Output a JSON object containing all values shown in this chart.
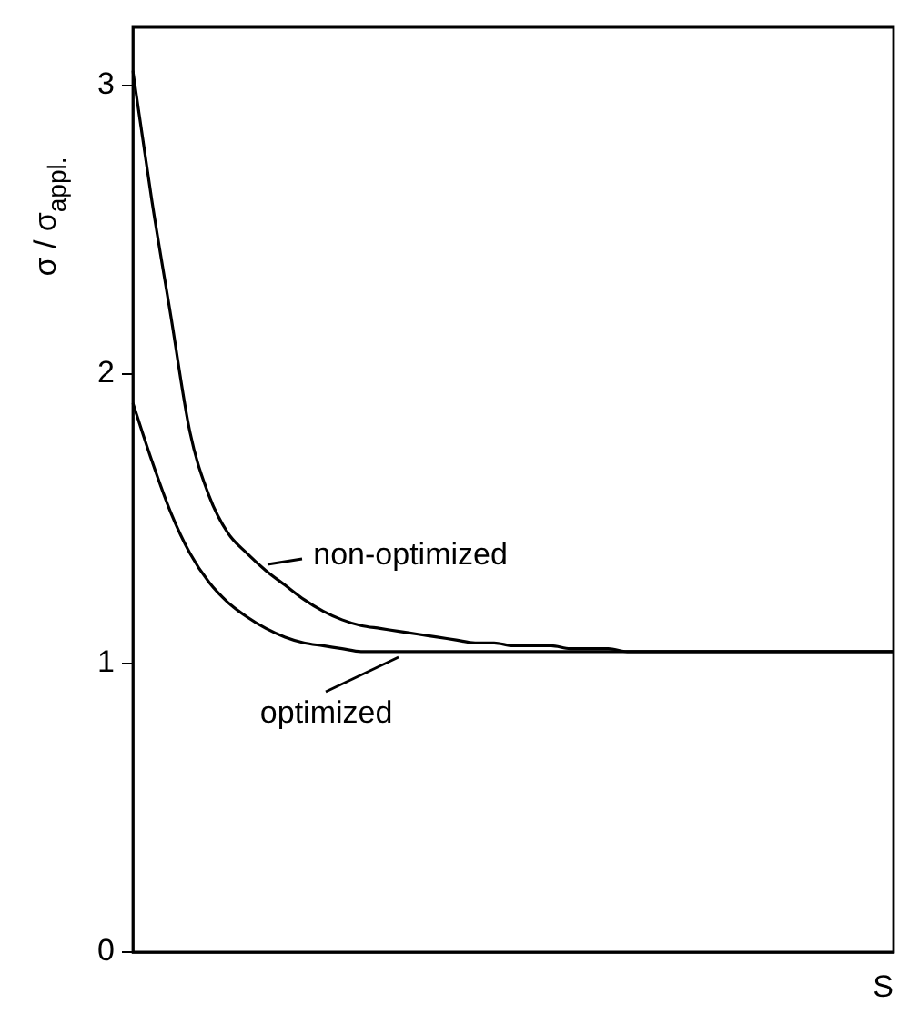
{
  "chart_data": {
    "type": "line",
    "xlabel": "S",
    "ylabel": "σ / σ$_{appl.}$",
    "categories": [
      null,
      null,
      null,
      null,
      null,
      null,
      null,
      null,
      null,
      null,
      null,
      null,
      null,
      null,
      null,
      null,
      null,
      null,
      null,
      null,
      null,
      null,
      null,
      null,
      null,
      null,
      null,
      null,
      null,
      null,
      null,
      null,
      null,
      null,
      null,
      null,
      null,
      null,
      null,
      null,
      null
    ],
    "series": [
      {
        "color": "#000000",
        "values": [
          3.05,
          2.6,
          2.2,
          1.8,
          1.58,
          1.45,
          1.38,
          1.32,
          1.27,
          1.22,
          1.18,
          1.15,
          1.13,
          1.12,
          1.11,
          1.1,
          1.09,
          1.08,
          1.07,
          1.07,
          1.06,
          1.06,
          1.06,
          1.05,
          1.05,
          1.05,
          1.04,
          1.04,
          1.04,
          1.04,
          1.04,
          1.04,
          1.04,
          1.04,
          1.04,
          1.04,
          1.04,
          1.04,
          1.04,
          1.04,
          1.04
        ]
      },
      {
        "color": "#000000",
        "values": [
          1.9,
          1.7,
          1.52,
          1.38,
          1.28,
          1.21,
          1.16,
          1.12,
          1.09,
          1.07,
          1.06,
          1.05,
          1.04,
          1.04,
          1.04,
          1.04,
          1.04,
          1.04,
          1.04,
          1.04,
          1.04,
          1.04,
          1.04,
          1.04,
          1.04,
          1.04,
          1.04,
          1.04,
          1.04,
          1.04,
          1.04,
          1.04,
          1.04,
          1.04,
          1.04,
          1.04,
          1.04,
          1.04,
          1.04,
          1.04,
          1.04
        ]
      }
    ],
    "annotations": [
      "non-optimized",
      "optimized"
    ],
    "ylim": [
      0,
      3.2
    ],
    "yticks": [
      0,
      1,
      2,
      3
    ],
    "grid": false,
    "legend": false,
    "marker": "none",
    "line_style": "solid"
  }
}
